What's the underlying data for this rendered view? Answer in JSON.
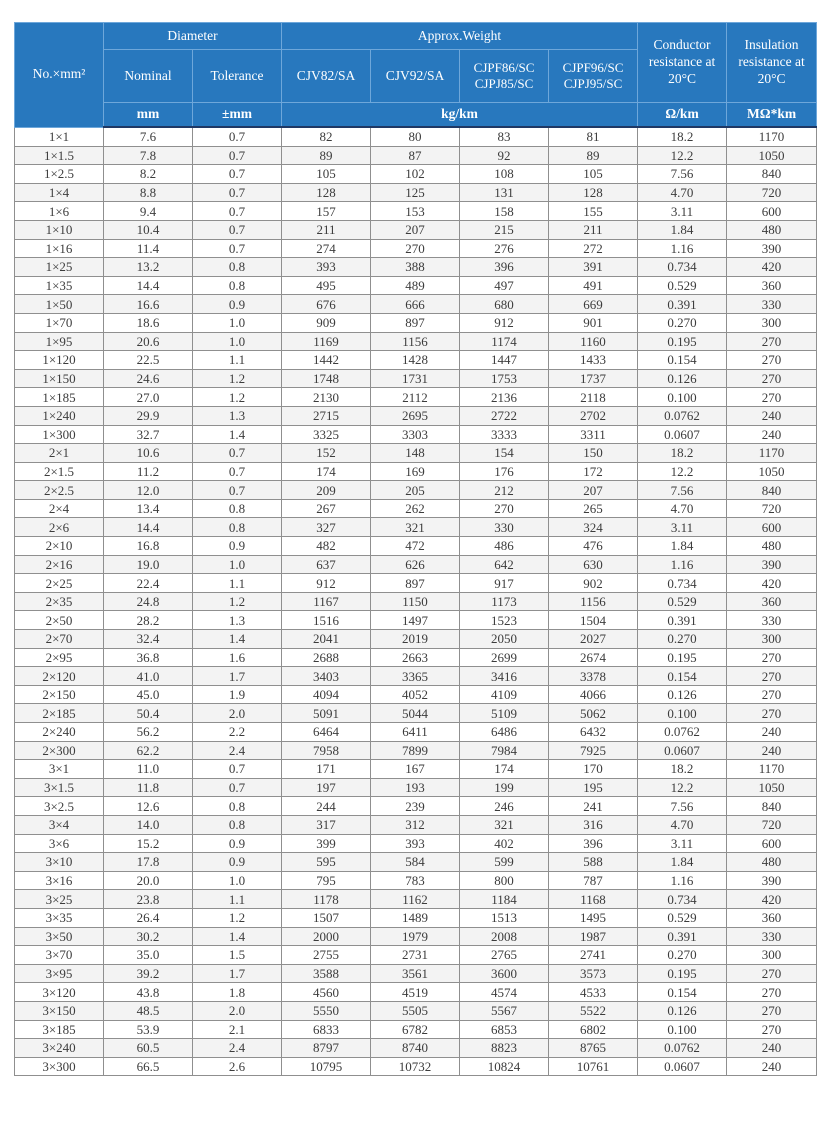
{
  "table": {
    "header": {
      "col_spec": "No.×mm²",
      "group_diameter": "Diameter",
      "group_weight": "Approx.Weight",
      "col_nominal": "Nominal",
      "col_tolerance": "Tolerance",
      "col_cjv82": "CJV82/SA",
      "col_cjv92": "CJV92/SA",
      "col_cjpf86": "CJPF86/SC CJPJ85/SC",
      "col_cjpf96": "CJPF96/SC CJPJ95/SC",
      "col_conductor": "Conductor resistance at 20°C",
      "col_insulation": "Insulation resistance at 20°C",
      "unit_mm": "mm",
      "unit_tolerance": "±mm",
      "unit_weight": "kg/km",
      "unit_resistance": "Ω/km",
      "unit_insulation": "MΩ*km"
    },
    "rows": [
      [
        "1×1",
        "7.6",
        "0.7",
        "82",
        "80",
        "83",
        "81",
        "18.2",
        "1170"
      ],
      [
        "1×1.5",
        "7.8",
        "0.7",
        "89",
        "87",
        "92",
        "89",
        "12.2",
        "1050"
      ],
      [
        "1×2.5",
        "8.2",
        "0.7",
        "105",
        "102",
        "108",
        "105",
        "7.56",
        "840"
      ],
      [
        "1×4",
        "8.8",
        "0.7",
        "128",
        "125",
        "131",
        "128",
        "4.70",
        "720"
      ],
      [
        "1×6",
        "9.4",
        "0.7",
        "157",
        "153",
        "158",
        "155",
        "3.11",
        "600"
      ],
      [
        "1×10",
        "10.4",
        "0.7",
        "211",
        "207",
        "215",
        "211",
        "1.84",
        "480"
      ],
      [
        "1×16",
        "11.4",
        "0.7",
        "274",
        "270",
        "276",
        "272",
        "1.16",
        "390"
      ],
      [
        "1×25",
        "13.2",
        "0.8",
        "393",
        "388",
        "396",
        "391",
        "0.734",
        "420"
      ],
      [
        "1×35",
        "14.4",
        "0.8",
        "495",
        "489",
        "497",
        "491",
        "0.529",
        "360"
      ],
      [
        "1×50",
        "16.6",
        "0.9",
        "676",
        "666",
        "680",
        "669",
        "0.391",
        "330"
      ],
      [
        "1×70",
        "18.6",
        "1.0",
        "909",
        "897",
        "912",
        "901",
        "0.270",
        "300"
      ],
      [
        "1×95",
        "20.6",
        "1.0",
        "1169",
        "1156",
        "1174",
        "1160",
        "0.195",
        "270"
      ],
      [
        "1×120",
        "22.5",
        "1.1",
        "1442",
        "1428",
        "1447",
        "1433",
        "0.154",
        "270"
      ],
      [
        "1×150",
        "24.6",
        "1.2",
        "1748",
        "1731",
        "1753",
        "1737",
        "0.126",
        "270"
      ],
      [
        "1×185",
        "27.0",
        "1.2",
        "2130",
        "2112",
        "2136",
        "2118",
        "0.100",
        "270"
      ],
      [
        "1×240",
        "29.9",
        "1.3",
        "2715",
        "2695",
        "2722",
        "2702",
        "0.0762",
        "240"
      ],
      [
        "1×300",
        "32.7",
        "1.4",
        "3325",
        "3303",
        "3333",
        "3311",
        "0.0607",
        "240"
      ],
      [
        "2×1",
        "10.6",
        "0.7",
        "152",
        "148",
        "154",
        "150",
        "18.2",
        "1170"
      ],
      [
        "2×1.5",
        "11.2",
        "0.7",
        "174",
        "169",
        "176",
        "172",
        "12.2",
        "1050"
      ],
      [
        "2×2.5",
        "12.0",
        "0.7",
        "209",
        "205",
        "212",
        "207",
        "7.56",
        "840"
      ],
      [
        "2×4",
        "13.4",
        "0.8",
        "267",
        "262",
        "270",
        "265",
        "4.70",
        "720"
      ],
      [
        "2×6",
        "14.4",
        "0.8",
        "327",
        "321",
        "330",
        "324",
        "3.11",
        "600"
      ],
      [
        "2×10",
        "16.8",
        "0.9",
        "482",
        "472",
        "486",
        "476",
        "1.84",
        "480"
      ],
      [
        "2×16",
        "19.0",
        "1.0",
        "637",
        "626",
        "642",
        "630",
        "1.16",
        "390"
      ],
      [
        "2×25",
        "22.4",
        "1.1",
        "912",
        "897",
        "917",
        "902",
        "0.734",
        "420"
      ],
      [
        "2×35",
        "24.8",
        "1.2",
        "1167",
        "1150",
        "1173",
        "1156",
        "0.529",
        "360"
      ],
      [
        "2×50",
        "28.2",
        "1.3",
        "1516",
        "1497",
        "1523",
        "1504",
        "0.391",
        "330"
      ],
      [
        "2×70",
        "32.4",
        "1.4",
        "2041",
        "2019",
        "2050",
        "2027",
        "0.270",
        "300"
      ],
      [
        "2×95",
        "36.8",
        "1.6",
        "2688",
        "2663",
        "2699",
        "2674",
        "0.195",
        "270"
      ],
      [
        "2×120",
        "41.0",
        "1.7",
        "3403",
        "3365",
        "3416",
        "3378",
        "0.154",
        "270"
      ],
      [
        "2×150",
        "45.0",
        "1.9",
        "4094",
        "4052",
        "4109",
        "4066",
        "0.126",
        "270"
      ],
      [
        "2×185",
        "50.4",
        "2.0",
        "5091",
        "5044",
        "5109",
        "5062",
        "0.100",
        "270"
      ],
      [
        "2×240",
        "56.2",
        "2.2",
        "6464",
        "6411",
        "6486",
        "6432",
        "0.0762",
        "240"
      ],
      [
        "2×300",
        "62.2",
        "2.4",
        "7958",
        "7899",
        "7984",
        "7925",
        "0.0607",
        "240"
      ],
      [
        "3×1",
        "11.0",
        "0.7",
        "171",
        "167",
        "174",
        "170",
        "18.2",
        "1170"
      ],
      [
        "3×1.5",
        "11.8",
        "0.7",
        "197",
        "193",
        "199",
        "195",
        "12.2",
        "1050"
      ],
      [
        "3×2.5",
        "12.6",
        "0.8",
        "244",
        "239",
        "246",
        "241",
        "7.56",
        "840"
      ],
      [
        "3×4",
        "14.0",
        "0.8",
        "317",
        "312",
        "321",
        "316",
        "4.70",
        "720"
      ],
      [
        "3×6",
        "15.2",
        "0.9",
        "399",
        "393",
        "402",
        "396",
        "3.11",
        "600"
      ],
      [
        "3×10",
        "17.8",
        "0.9",
        "595",
        "584",
        "599",
        "588",
        "1.84",
        "480"
      ],
      [
        "3×16",
        "20.0",
        "1.0",
        "795",
        "783",
        "800",
        "787",
        "1.16",
        "390"
      ],
      [
        "3×25",
        "23.8",
        "1.1",
        "1178",
        "1162",
        "1184",
        "1168",
        "0.734",
        "420"
      ],
      [
        "3×35",
        "26.4",
        "1.2",
        "1507",
        "1489",
        "1513",
        "1495",
        "0.529",
        "360"
      ],
      [
        "3×50",
        "30.2",
        "1.4",
        "2000",
        "1979",
        "2008",
        "1987",
        "0.391",
        "330"
      ],
      [
        "3×70",
        "35.0",
        "1.5",
        "2755",
        "2731",
        "2765",
        "2741",
        "0.270",
        "300"
      ],
      [
        "3×95",
        "39.2",
        "1.7",
        "3588",
        "3561",
        "3600",
        "3573",
        "0.195",
        "270"
      ],
      [
        "3×120",
        "43.8",
        "1.8",
        "4560",
        "4519",
        "4574",
        "4533",
        "0.154",
        "270"
      ],
      [
        "3×150",
        "48.5",
        "2.0",
        "5550",
        "5505",
        "5567",
        "5522",
        "0.126",
        "270"
      ],
      [
        "3×185",
        "53.9",
        "2.1",
        "6833",
        "6782",
        "6853",
        "6802",
        "0.100",
        "270"
      ],
      [
        "3×240",
        "60.5",
        "2.4",
        "8797",
        "8740",
        "8823",
        "8765",
        "0.0762",
        "240"
      ],
      [
        "3×300",
        "66.5",
        "2.6",
        "10795",
        "10732",
        "10824",
        "10761",
        "0.0607",
        "240"
      ]
    ]
  },
  "colors": {
    "header_bg": "#2878be",
    "header_border": "#6ea7da",
    "header_text": "#ffffff",
    "row_alt": "#f3f3f3",
    "grid": "#8f8f8f",
    "body_text": "#3c3c3c"
  }
}
